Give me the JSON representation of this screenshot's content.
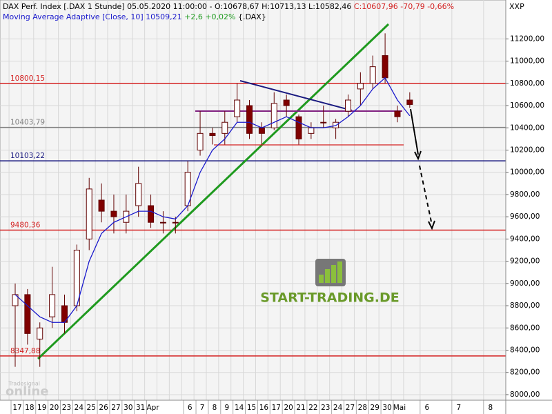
{
  "chart_data": {
    "type": "candlestick",
    "header": {
      "line1": "DAX Perf. Index [.DAX  1 Stunde] 05.05.2020 11:00:00 - O:10678,67 H:10713,13 L:10582,46",
      "line1_change": "C:10607,96 -70,79 -0,66%",
      "line2": "Moving Average Adaptive [Close, 10] 10509,21",
      "line2_change": "+2,6 +0,02%",
      "line2_end": "{.DAX}",
      "axis_title": "XXP"
    },
    "categories": [
      "17",
      "18",
      "19",
      "20",
      "23",
      "24",
      "25",
      "26",
      "27",
      "30",
      "31",
      "Apr",
      null,
      null,
      "6",
      "7",
      "8",
      "9",
      "14",
      "15",
      "16",
      "17",
      "20",
      "21",
      "22",
      "23",
      "24",
      "27",
      "28",
      "29",
      "30",
      "Mai",
      null
    ],
    "future_categories": [
      "6",
      "7",
      "8"
    ],
    "open": [
      8800,
      8900,
      8500,
      8700,
      8800,
      8800,
      9400,
      9750,
      9650,
      9550,
      9700,
      9700,
      9550,
      9550,
      9700,
      10200,
      10350,
      10350,
      10500,
      10600,
      10400,
      10400,
      10650,
      10500,
      10350,
      10450,
      10400,
      10550,
      10750,
      10800,
      11050,
      10550,
      10650
    ],
    "high": [
      9000,
      8950,
      8650,
      9150,
      8900,
      9350,
      9950,
      9900,
      9800,
      9800,
      10050,
      9800,
      9650,
      9600,
      10100,
      10550,
      10400,
      10550,
      10800,
      10650,
      10450,
      10720,
      10700,
      10520,
      10450,
      10600,
      10480,
      10700,
      10900,
      11050,
      11250,
      10600,
      10720
    ],
    "low": [
      8250,
      8450,
      8250,
      8600,
      8550,
      8750,
      9300,
      9550,
      9450,
      9450,
      9600,
      9500,
      9450,
      9450,
      9650,
      10150,
      10250,
      10250,
      10450,
      10300,
      10250,
      10380,
      10500,
      10250,
      10300,
      10400,
      10300,
      10500,
      10600,
      10750,
      10800,
      10450,
      10580
    ],
    "close": [
      8900,
      8550,
      8600,
      8900,
      8650,
      9300,
      9850,
      9650,
      9600,
      9650,
      9900,
      9550,
      9550,
      9550,
      10000,
      10350,
      10330,
      10450,
      10650,
      10350,
      10350,
      10620,
      10600,
      10300,
      10400,
      10450,
      10450,
      10650,
      10800,
      10950,
      10850,
      10500,
      10610
    ],
    "up_color": "#ffffff",
    "down_color": "#800000",
    "outline_color": "#600000",
    "ma": {
      "color": "#1a1acc",
      "values": [
        8900,
        8800,
        8700,
        8650,
        8650,
        8800,
        9200,
        9450,
        9550,
        9600,
        9650,
        9650,
        9600,
        9580,
        9700,
        10000,
        10200,
        10300,
        10450,
        10450,
        10400,
        10450,
        10500,
        10450,
        10400,
        10400,
        10420,
        10500,
        10600,
        10750,
        10850,
        10650,
        10509
      ]
    },
    "levels": [
      {
        "value": 10800.15,
        "label": "10800,15",
        "color": "#d42020"
      },
      {
        "value": 10403.79,
        "label": "10403,79",
        "color": "#808080"
      },
      {
        "value": 10103.22,
        "label": "10103,22",
        "color": "#1a1a80"
      },
      {
        "value": 9480.36,
        "label": "9480,36",
        "color": "#d42020"
      },
      {
        "value": 8347.88,
        "label": "8347,88",
        "color": "#d42020"
      }
    ],
    "ylim": [
      7950,
      11550
    ],
    "yticks": [
      {
        "value": 8000,
        "label": "8000,00"
      },
      {
        "value": 8200,
        "label": "8200,00"
      },
      {
        "value": 8400,
        "label": "8400,00"
      },
      {
        "value": 8600,
        "label": "8600,00"
      },
      {
        "value": 8800,
        "label": "8800,00"
      },
      {
        "value": 9000,
        "label": "9000,00"
      },
      {
        "value": 9200,
        "label": "9200,00"
      },
      {
        "value": 9400,
        "label": "9400,00"
      },
      {
        "value": 9600,
        "label": "9600,00"
      },
      {
        "value": 9800,
        "label": "9800,00"
      },
      {
        "value": 10000,
        "label": "10000,00"
      },
      {
        "value": 10200,
        "label": "10200,00"
      },
      {
        "value": 10400,
        "label": "10400,00"
      },
      {
        "value": 10600,
        "label": "10600,00"
      },
      {
        "value": 10800,
        "label": "10800,00"
      },
      {
        "value": 11000,
        "label": "11000,00"
      },
      {
        "value": 11200,
        "label": "11200,00"
      }
    ],
    "grid": true,
    "logo": "START-TRADING.DE",
    "brand": "online",
    "brand_small": "Tradesignal"
  }
}
